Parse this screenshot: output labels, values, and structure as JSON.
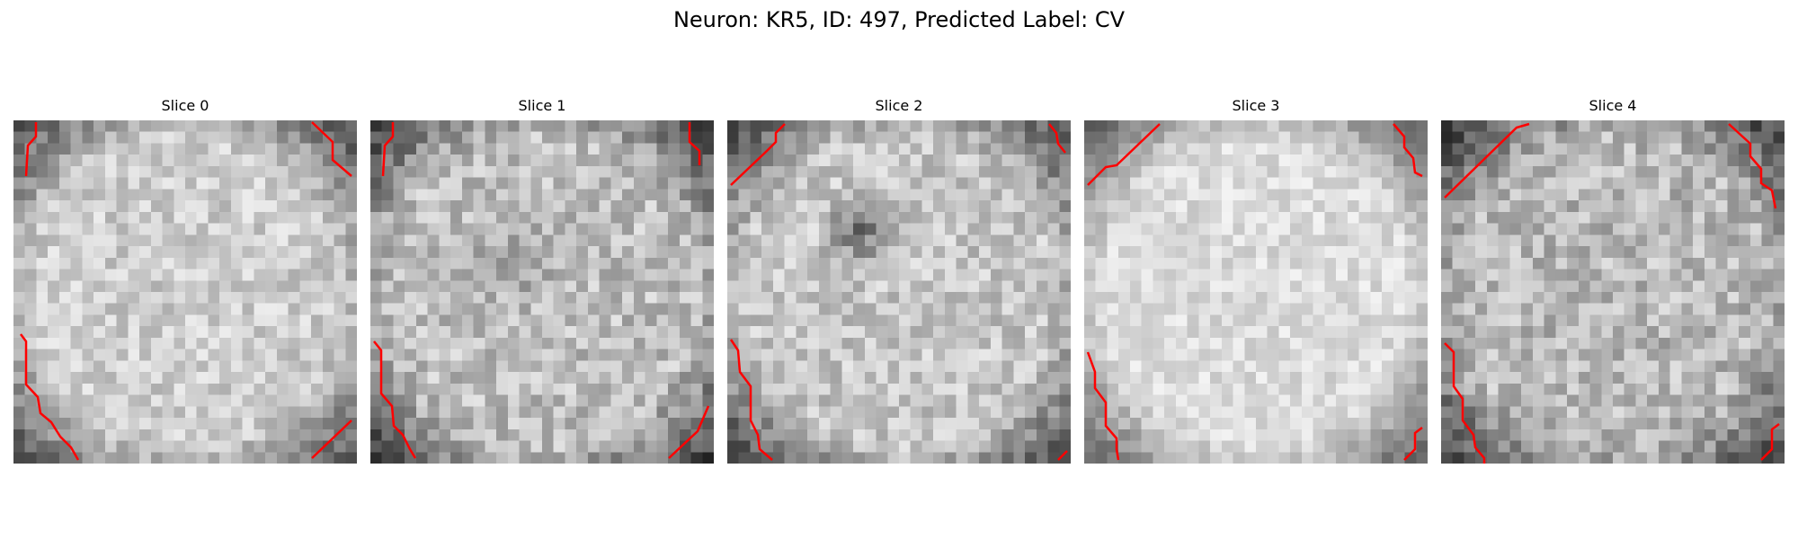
{
  "figure": {
    "suptitle": "Neuron: KR5, ID: 497, Predicted Label: CV",
    "slices": [
      {
        "title": "Slice 0",
        "dark_spots": []
      },
      {
        "title": "Slice 1",
        "dark_spots": []
      },
      {
        "title": "Slice 2",
        "dark_spots": []
      },
      {
        "title": "Slice 3",
        "dark_spots": []
      },
      {
        "title": "Slice 4",
        "dark_spots": []
      }
    ],
    "colors": {
      "contour": "#ff0000",
      "colormap": "gray"
    }
  }
}
